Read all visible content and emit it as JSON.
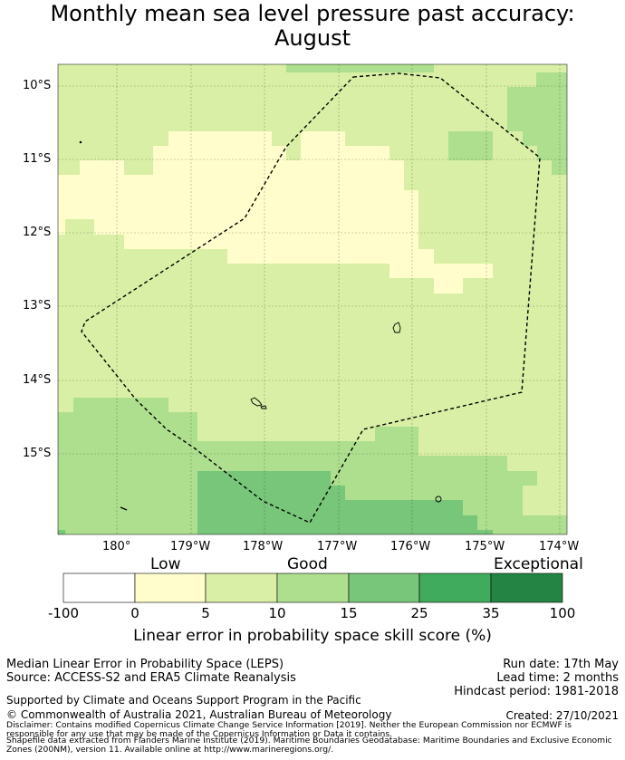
{
  "title_line1": "Monthly mean sea level pressure past accuracy:",
  "title_line2": "August",
  "lat_labels": [
    "10°S",
    "11°S",
    "12°S",
    "13°S",
    "14°S",
    "15°S"
  ],
  "lon_labels": [
    "180°",
    "179°W",
    "178°W",
    "177°W",
    "176°W",
    "175°W",
    "174°W"
  ],
  "colorbar": {
    "words": [
      "Low",
      "Good",
      "Exceptional"
    ],
    "ticks": [
      "-100",
      "0",
      "5",
      "10",
      "15",
      "25",
      "35",
      "100"
    ],
    "colors": [
      "#ffffff",
      "#fefdcb",
      "#d9efa5",
      "#addf8e",
      "#78c679",
      "#41ab5d",
      "#238443"
    ],
    "label": "Linear error in probability space skill score (%)"
  },
  "footer": {
    "left1": "Median Linear Error in Probability Space (LEPS)",
    "left2": "Source: ACCESS-S2 and ERA5 Climate Reanalysis",
    "right1": "Run date: 17th May",
    "right2": "Lead time: 2 months",
    "right3": "Hindcast period: 1981-2018",
    "support": "Supported by Climate and Oceans Support Program in the Pacific",
    "copyright": "© Commonwealth of Australia 2021, Australian Bureau of Meteorology",
    "created": "Created: 27/10/2021",
    "disclaimer1": "Disclaimer: Contains modified Copernicus Climate Change Service Information [2019]. Neither the European Commission nor ECMWF is",
    "disclaimer2": "responsible for any use that may be made of the Copernicus Information or Data it contains.",
    "disclaimer3": "Shapefile data extracted from Flanders Marine Institute (2019). Maritime Boundaries Geodatabase: Maritime Boundaries and Exclusive Economic",
    "disclaimer4": "Zones (200NM), version 11. Available online at http://www.marineregions.org/."
  }
}
